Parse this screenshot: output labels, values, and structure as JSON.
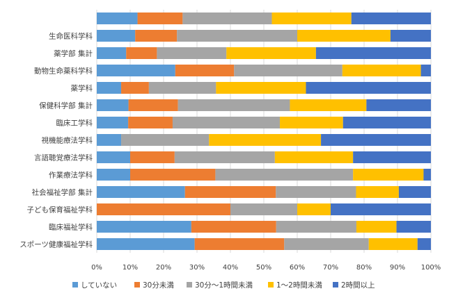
{
  "chart_data": {
    "type": "bar",
    "orientation": "horizontal",
    "stacked": "percent",
    "categories": [
      "",
      "生命医科学科",
      "薬学部 集計",
      "動物生命薬科学科",
      "薬学科",
      "保健科学部 集計",
      "臨床工学科",
      "視機能療法学科",
      "言語聴覚療法学科",
      "作業療法学科",
      "社会福祉学部 集計",
      "子ども保育福祉学科",
      "臨床福祉学科",
      "スポーツ健康福祉学科"
    ],
    "series": [
      {
        "name": "していない",
        "color": "#5B9BD5",
        "values": [
          12.2,
          11.5,
          8.8,
          23.5,
          7.3,
          9.5,
          9.4,
          7.3,
          10.0,
          10.0,
          26.4,
          0.0,
          28.3,
          29.3
        ]
      },
      {
        "name": "30分未満",
        "color": "#ED7D31",
        "values": [
          13.5,
          12.5,
          9.2,
          17.6,
          8.3,
          14.8,
          13.3,
          0.0,
          13.3,
          25.5,
          27.2,
          40.0,
          25.4,
          26.8
        ]
      },
      {
        "name": "30分～1時間未満",
        "color": "#A5A5A5",
        "values": [
          26.7,
          36.0,
          20.8,
          32.4,
          20.1,
          33.5,
          32.1,
          26.3,
          30.0,
          41.2,
          24.0,
          20.0,
          24.0,
          25.3
        ]
      },
      {
        "name": "1～2時間未満",
        "color": "#FFC000",
        "values": [
          23.8,
          27.9,
          26.8,
          23.5,
          26.9,
          22.9,
          18.9,
          33.5,
          23.4,
          21.1,
          12.8,
          10.0,
          12.0,
          14.6
        ]
      },
      {
        "name": "2時間以上",
        "color": "#4472C4",
        "values": [
          23.8,
          12.1,
          34.4,
          3.0,
          37.4,
          19.3,
          26.3,
          32.9,
          23.3,
          2.2,
          9.6,
          30.0,
          10.3,
          4.0
        ]
      }
    ],
    "xaxis": {
      "min": 0,
      "max": 100,
      "step": 10,
      "unit": "%"
    },
    "legend_position": "bottom",
    "grid": true
  }
}
